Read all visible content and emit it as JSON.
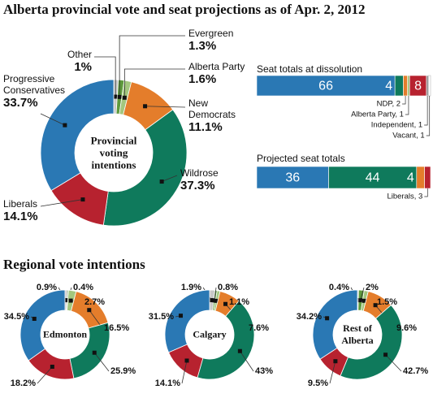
{
  "title": "Alberta provincial vote and seat projections as of Apr. 2, 2012",
  "section_title": "Regional vote intentions",
  "chart_data": [
    {
      "type": "donut",
      "center_label": "Provincial voting intentions",
      "categories": [
        "Other",
        "Evergreen",
        "Alberta Party",
        "New Democrats",
        "Wildrose",
        "Liberals",
        "Progressive Conservatives"
      ],
      "values": [
        1,
        1.3,
        1.6,
        11.1,
        37.3,
        14.1,
        33.7
      ],
      "value_labels": [
        "1%",
        "1.3%",
        "1.6%",
        "11.1%",
        "37.3%",
        "14.1%",
        "33.7%"
      ],
      "colors": [
        "#c8c8c8",
        "#5e9a3c",
        "#a3c77e",
        "#e47d2b",
        "#0f7a5c",
        "#b7222f",
        "#2a78b4"
      ]
    },
    {
      "type": "stacked-bar",
      "title": "Seat totals at dissolution",
      "values": [
        66,
        4,
        2,
        1,
        8,
        1,
        1
      ],
      "labels": [
        null,
        null,
        "NDP, 2",
        "Alberta Party, 1",
        null,
        "Independent, 1",
        "Vacant, 1"
      ],
      "colors": [
        "#2a78b4",
        "#0f7a5c",
        "#e47d2b",
        "#a3c77e",
        "#b7222f",
        "#9a9a9a",
        "#ffffff"
      ]
    },
    {
      "type": "stacked-bar",
      "title": "Projected seat totals",
      "values": [
        36,
        44,
        4,
        3
      ],
      "labels": [
        null,
        null,
        null,
        "Liberals, 3"
      ],
      "colors": [
        "#2a78b4",
        "#0f7a5c",
        "#e47d2b",
        "#b7222f"
      ]
    },
    {
      "type": "donut",
      "center_label": "Edmonton",
      "values": [
        0.9,
        0.4,
        2.7,
        16.5,
        25.9,
        18.2,
        34.5
      ],
      "value_labels": [
        "0.9%",
        "0.4%",
        "2.7%",
        "16.5%",
        "25.9%",
        "18.2%",
        "34.5%"
      ],
      "colors": [
        "#c8c8c8",
        "#5e9a3c",
        "#a3c77e",
        "#e47d2b",
        "#0f7a5c",
        "#b7222f",
        "#2a78b4"
      ]
    },
    {
      "type": "donut",
      "center_label": "Calgary",
      "values": [
        1.9,
        0.8,
        1.1,
        7.6,
        43,
        14.1,
        31.5
      ],
      "value_labels": [
        "1.9%",
        "0.8%",
        "1.1%",
        "7.6%",
        "43%",
        "14.1%",
        "31.5%"
      ],
      "colors": [
        "#c8c8c8",
        "#5e9a3c",
        "#a3c77e",
        "#e47d2b",
        "#0f7a5c",
        "#b7222f",
        "#2a78b4"
      ]
    },
    {
      "type": "donut",
      "center_label": "Rest of Alberta",
      "values": [
        0.4,
        2,
        1.5,
        9.6,
        42.7,
        9.5,
        34.2
      ],
      "value_labels": [
        "0.4%",
        "2%",
        "1.5%",
        "9.6%",
        "42.7%",
        "9.5%",
        "34.2%"
      ],
      "colors": [
        "#c8c8c8",
        "#5e9a3c",
        "#a3c77e",
        "#e47d2b",
        "#0f7a5c",
        "#b7222f",
        "#2a78b4"
      ]
    }
  ]
}
